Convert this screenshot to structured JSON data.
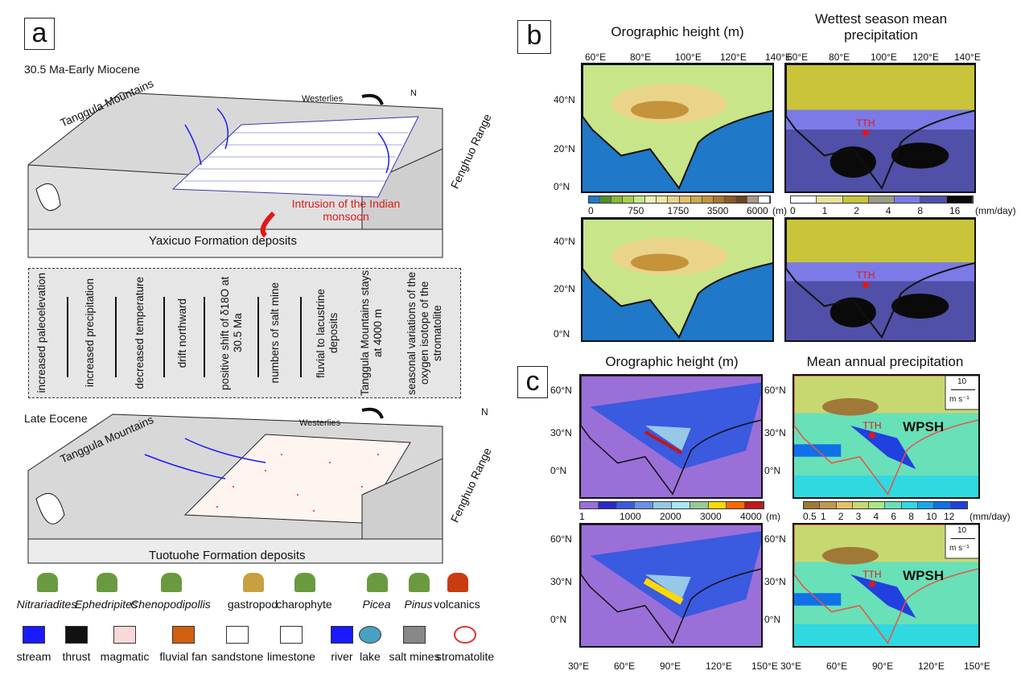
{
  "panel_a": {
    "label": "a",
    "top": {
      "period": "30.5 Ma-Early Miocene",
      "left_mtn": "Tanggula Mountains",
      "right_mtn": "Fenghuo Range",
      "wind": "Westerlies",
      "intrusion": "Intrusion of the Indian monsoon",
      "formation": "Yaxicuo Formation deposits",
      "north": "N"
    },
    "changes": [
      {
        "text": "increased paleoelevation",
        "dir": "up"
      },
      {
        "text": "increased precipitation",
        "dir": "up"
      },
      {
        "text": "decreased temperature",
        "dir": "down"
      },
      {
        "text": "drift northward",
        "dir": "up"
      },
      {
        "text": "positive shift of δ18O at 30.5 Ma",
        "dir": "up"
      },
      {
        "text": "numbers of salt mine",
        "dir": "up"
      },
      {
        "text": "fluvial to lacustrine deposits",
        "dir": ""
      },
      {
        "text": "Tanggula Mountains stays at 4000 m",
        "dir": ""
      },
      {
        "text": "seasonal variations of the oxygen isotope of the stromatolite",
        "dir": ""
      }
    ],
    "bottom": {
      "period": "Late Eocene",
      "left_mtn": "Tanggula Mountains",
      "right_mtn": "Fenghuo Range",
      "wind": "Westerlies",
      "formation": "Tuotuohe Formation deposits",
      "north": "N"
    },
    "legend_row1": [
      "Nitrariadites",
      "Ephedripites",
      "Chenopodipollis",
      "gastropod",
      "charophyte",
      "Picea",
      "Pinus",
      "volcanics"
    ],
    "legend_row2": [
      "stream",
      "thrust",
      "magmatic",
      "fluvial fan",
      "sandstone",
      "limestone",
      "river",
      "lake",
      "salt mines",
      "stromatolite"
    ]
  },
  "panel_b": {
    "label": "b",
    "title_left": "Orographic height (m)",
    "title_right": "Wettest season mean precipitation",
    "lon_ticks": [
      "60°E",
      "80°E",
      "100°E",
      "120°E",
      "140°E"
    ],
    "lat_ticks": [
      "40°N",
      "20°N",
      "0°N"
    ],
    "marker": "TTH",
    "cbar_left": {
      "ticks": [
        "0",
        "750",
        "1750",
        "3500",
        "6000"
      ],
      "unit": "(m)",
      "colors": [
        "#1f78c8",
        "#4f8f2a",
        "#86b83a",
        "#a7d04f",
        "#c8e58a",
        "#f0f0b8",
        "#f2e6a6",
        "#e9d48a",
        "#dfc06a",
        "#d1a84a",
        "#c4933a",
        "#a87430",
        "#8a5a28",
        "#6b4420",
        "#a89a8c",
        "#ffffff"
      ]
    },
    "cbar_right": {
      "ticks": [
        "0",
        "1",
        "2",
        "4",
        "8",
        "16"
      ],
      "unit": "(mm/day)",
      "colors": [
        "#ffffff",
        "#e6e29a",
        "#c9c43a",
        "#9a9a80",
        "#7b7ae6",
        "#5050a8",
        "#0a0a0a"
      ]
    }
  },
  "panel_c": {
    "label": "c",
    "title_left": "Orographic height (m)",
    "title_right": "Mean annual precipitation",
    "lon_ticks": [
      "30°E",
      "60°E",
      "90°E",
      "120°E",
      "150°E"
    ],
    "lat_ticks": [
      "60°N",
      "30°N",
      "0°N"
    ],
    "marker": "TTH",
    "high": "WPSH",
    "wind_ref": {
      "value": "10",
      "unit": "m s⁻¹"
    },
    "cbar_left": {
      "ticks": [
        "1",
        "1000",
        "2000",
        "3000",
        "4000"
      ],
      "unit": "(m)",
      "colors": [
        "#9a70d8",
        "#2a2ac8",
        "#3a5ae0",
        "#6a90e8",
        "#98c8e8",
        "#a8e8f0",
        "#98c898",
        "#ffd800",
        "#ff6a00",
        "#c01818"
      ]
    },
    "cbar_right": {
      "ticks": [
        "0.5",
        "1",
        "2",
        "3",
        "4",
        "6",
        "8",
        "10",
        "12"
      ],
      "unit": "(mm/day)",
      "colors": [
        "#a07838",
        "#c09850",
        "#e8c068",
        "#c8d870",
        "#a8e888",
        "#68e0b8",
        "#30d8e0",
        "#18a8e8",
        "#1070e8",
        "#2040e0"
      ]
    }
  }
}
